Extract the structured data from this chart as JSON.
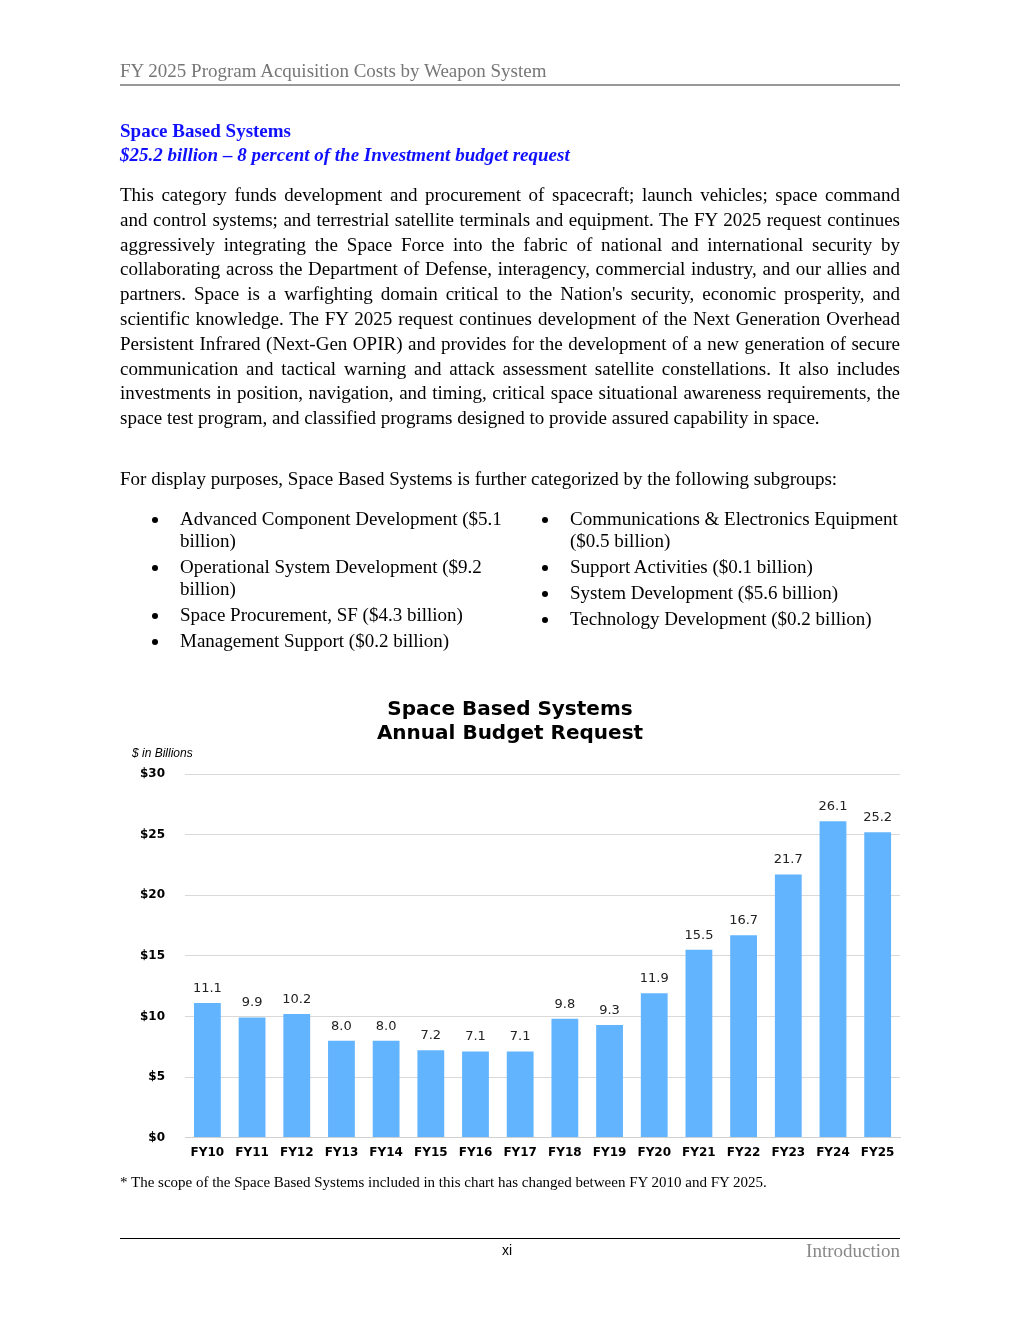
{
  "chart_data": {
    "type": "bar",
    "title": "Space Based Systems\nAnnual Budget Request",
    "ylabel": "$ in Billions",
    "categories": [
      "FY10",
      "FY11",
      "FY12",
      "FY13",
      "FY14",
      "FY15",
      "FY16",
      "FY17",
      "FY18",
      "FY19",
      "FY20",
      "FY21",
      "FY22",
      "FY23",
      "FY24",
      "FY25"
    ],
    "values": [
      11.1,
      9.9,
      10.2,
      8.0,
      8.0,
      7.2,
      7.1,
      7.1,
      9.8,
      9.3,
      11.9,
      15.5,
      16.7,
      21.7,
      26.1,
      25.2
    ],
    "value_labels": [
      "11.1",
      "9.9",
      "10.2",
      "8.0",
      "8.0",
      "7.2",
      "7.1",
      "7.1",
      "9.8",
      "9.3",
      "11.9",
      "15.5",
      "16.7",
      "21.7",
      "26.1",
      "25.2"
    ],
    "color": "#63b4fe",
    "grid": "y",
    "legend": false,
    "ylim": [
      0,
      30
    ],
    "yticks": [
      {
        "value": 0,
        "label": "$0"
      },
      {
        "value": 5,
        "label": "$5"
      },
      {
        "value": 10,
        "label": "$10"
      },
      {
        "value": 15,
        "label": "$15"
      },
      {
        "value": 20,
        "label": "$20"
      },
      {
        "value": 25,
        "label": "$25"
      },
      {
        "value": 30,
        "label": "$30"
      }
    ],
    "annotations": [
      "FY 2025 Program Acquisition Costs by Weapon System",
      "Space Based Systems",
      "$25.2 billion – 8 percent of the Investment budget request",
      "This category funds development and procurement of spacecraft; launch vehicles; space command and control systems; and terrestrial satellite terminals and equipment.  The FY 2025 request continues aggressively integrating the Space Force into the fabric of national and international security by collaborating across the Department of Defense, interagency, commercial industry, and our allies and partners.  Space is a warfighting domain critical to the Nation's security, economic prosperity, and scientific knowledge.  The FY 2025 request continues development of the Next Generation Overhead Persistent Infrared (Next-Gen OPIR) and provides for the development of a new generation of secure communication and tactical warning and attack assessment satellite constellations.  It also includes investments in position, navigation, and timing, critical space situational awareness requirements, the space test program, and classified programs designed to provide assured capability in space.",
      "For display purposes, Space Based Systems is further categorized by the following subgroups:",
      "Advanced Component Development ($5.1 billion)",
      "Operational System Development ($9.2 billion)",
      "Space Procurement, SF ($4.3 billion)",
      "Management Support ($0.2 billion)",
      "Communications & Electronics Equipment ($0.5 billion)",
      "Support Activities ($0.1 billion)",
      "System Development ($5.6 billion)",
      "Technology Development ($0.2 billion)",
      "*  The scope of the Space Based Systems included in this chart has changed between FY 2010 and FY 2025.",
      "xi",
      "Introduction"
    ]
  }
}
